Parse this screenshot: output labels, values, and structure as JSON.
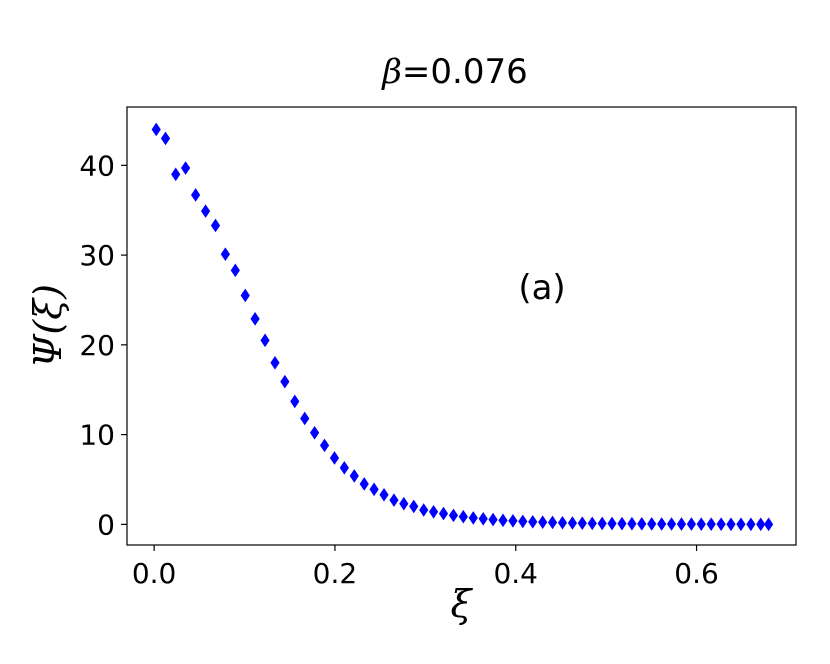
{
  "chart_data": {
    "type": "scatter",
    "title": "β=0.076",
    "title_symbol": "β",
    "title_value": "=0.076",
    "xlabel": "ξ",
    "ylabel": "Ψ(ξ)",
    "annotation": "(a)",
    "xlim": [
      -0.03,
      0.71
    ],
    "ylim": [
      -2.3,
      46.5
    ],
    "x_ticks": [
      0.0,
      0.2,
      0.4,
      0.6
    ],
    "x_tick_labels": [
      "0.0",
      "0.2",
      "0.4",
      "0.6"
    ],
    "y_ticks": [
      0,
      10,
      20,
      30,
      40
    ],
    "y_tick_labels": [
      "0",
      "10",
      "20",
      "30",
      "40"
    ],
    "grid": false,
    "marker": "diamond",
    "marker_color": "#0000ff",
    "series": [
      {
        "x": [
          0.0023,
          0.0126,
          0.0239,
          0.0348,
          0.0459,
          0.0569,
          0.0679,
          0.0788,
          0.0898,
          0.1008,
          0.1117,
          0.1227,
          0.1337,
          0.1446,
          0.1556,
          0.1666,
          0.1775,
          0.1885,
          0.1995,
          0.2104,
          0.2214,
          0.2324,
          0.2433,
          0.2543,
          0.2653,
          0.2762,
          0.2872,
          0.2982,
          0.3091,
          0.3201,
          0.3311,
          0.342,
          0.353,
          0.364,
          0.3749,
          0.3859,
          0.3969,
          0.4078,
          0.4188,
          0.4298,
          0.4407,
          0.4517,
          0.4627,
          0.4736,
          0.4846,
          0.4956,
          0.5065,
          0.5175,
          0.5285,
          0.5394,
          0.5504,
          0.5614,
          0.5723,
          0.5833,
          0.5943,
          0.6052,
          0.6162,
          0.6272,
          0.6381,
          0.6491,
          0.6601,
          0.671,
          0.6797
        ],
        "y": [
          44.0,
          43.0,
          39.0,
          39.7,
          36.7,
          34.9,
          33.3,
          30.1,
          28.3,
          25.5,
          22.9,
          20.5,
          18.0,
          15.9,
          13.7,
          11.8,
          10.2,
          8.8,
          7.4,
          6.3,
          5.4,
          4.5,
          3.9,
          3.3,
          2.7,
          2.3,
          2.0,
          1.6,
          1.4,
          1.2,
          1.0,
          0.85,
          0.72,
          0.62,
          0.53,
          0.45,
          0.39,
          0.33,
          0.28,
          0.24,
          0.21,
          0.18,
          0.15,
          0.13,
          0.11,
          0.1,
          0.09,
          0.08,
          0.07,
          0.06,
          0.05,
          0.04,
          0.04,
          0.03,
          0.03,
          0.02,
          0.02,
          0.02,
          0.01,
          0.01,
          0.01,
          0.01,
          0.0
        ]
      }
    ]
  }
}
